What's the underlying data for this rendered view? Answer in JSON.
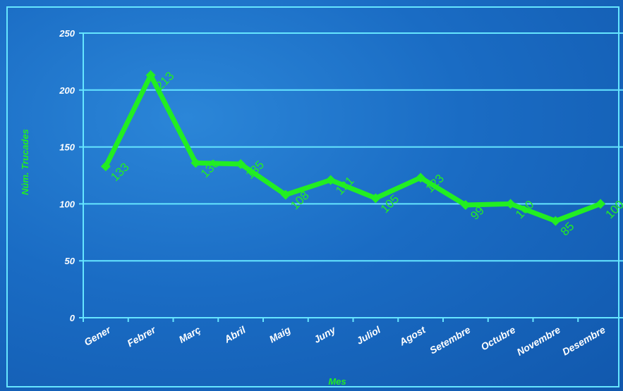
{
  "chart_data": {
    "type": "line",
    "xlabel": "Mes",
    "ylabel": "Núm. Trucades",
    "ylim": [
      0,
      250
    ],
    "yticks": [
      0,
      50,
      100,
      150,
      200,
      250
    ],
    "grid": true,
    "categories": [
      "Gener",
      "Febrer",
      "Març",
      "Abril",
      "Maig",
      "Juny",
      "Juliol",
      "Agost",
      "Setembre",
      "Octubre",
      "Novembre",
      "Desembre"
    ],
    "series": [
      {
        "values": [
          133,
          213,
          136,
          135,
          108,
          121,
          105,
          123,
          99,
          100,
          85,
          100
        ]
      }
    ],
    "colors": {
      "line": "#22ee22",
      "grid": "#66e6ff",
      "axis": "#66e6ff",
      "text": "#ffffff"
    }
  }
}
